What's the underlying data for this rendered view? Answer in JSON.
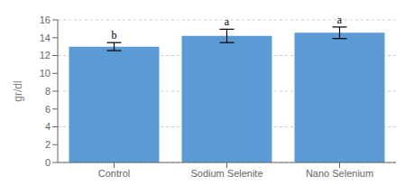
{
  "chart_data": {
    "type": "bar",
    "categories": [
      "Control",
      "Sodium Selenite",
      "Nano Selenium"
    ],
    "values": [
      13.0,
      14.2,
      14.55
    ],
    "errors": [
      0.45,
      0.75,
      0.65
    ],
    "annotations": [
      "b",
      "a",
      "a"
    ],
    "color": "#5B9BD5",
    "ylabel": "gr/dl",
    "ylim": [
      0,
      16
    ],
    "yticks": [
      0,
      2,
      4,
      6,
      8,
      10,
      12,
      14,
      16
    ],
    "grid": true
  }
}
